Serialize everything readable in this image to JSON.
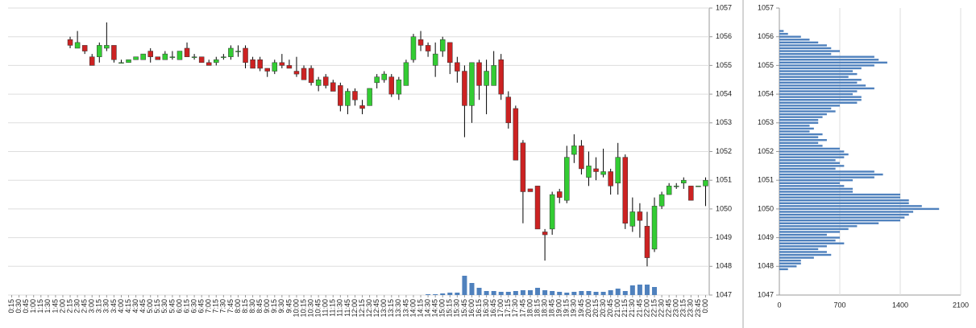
{
  "chart_data": [
    {
      "type": "candlestick",
      "categories": [
        "0:15",
        "0:30",
        "0:45",
        "1:00",
        "1:15",
        "1:30",
        "1:45",
        "2:00",
        "2:15",
        "2:30",
        "2:45",
        "3:00",
        "3:15",
        "3:30",
        "3:45",
        "4:00",
        "4:15",
        "4:30",
        "4:45",
        "5:00",
        "5:15",
        "5:30",
        "5:45",
        "6:00",
        "6:15",
        "6:30",
        "6:45",
        "7:00",
        "7:15",
        "7:30",
        "7:45",
        "8:00",
        "8:15",
        "8:30",
        "8:45",
        "9:00",
        "9:15",
        "9:30",
        "9:45",
        "10:00",
        "10:15",
        "10:30",
        "10:45",
        "11:00",
        "11:15",
        "11:30",
        "11:45",
        "12:00",
        "12:15",
        "12:30",
        "12:45",
        "13:00",
        "13:15",
        "13:30",
        "13:45",
        "14:00",
        "14:15",
        "14:30",
        "14:45",
        "15:00",
        "15:15",
        "15:30",
        "15:45",
        "16:00",
        "16:15",
        "16:30",
        "16:45",
        "17:00",
        "17:15",
        "17:30",
        "17:45",
        "18:00",
        "18:15",
        "18:30",
        "18:45",
        "19:00",
        "19:15",
        "19:30",
        "19:45",
        "20:00",
        "20:15",
        "20:30",
        "20:45",
        "21:00",
        "21:15",
        "21:30",
        "21:45",
        "22:00",
        "22:15",
        "22:30",
        "22:45",
        "23:00",
        "23:15",
        "23:30",
        "23:45",
        "0:00"
      ],
      "open": [
        null,
        null,
        null,
        null,
        null,
        null,
        null,
        null,
        1055.9,
        1055.6,
        1055.7,
        1055.3,
        1055.3,
        1055.6,
        1055.7,
        1055.1,
        1055.1,
        1055.2,
        1055.2,
        1055.5,
        1055.3,
        1055.2,
        1055.3,
        1055.2,
        1055.6,
        1055.3,
        1055.3,
        1055.1,
        1055.1,
        1055.3,
        1055.3,
        1055.5,
        1055.6,
        1055.2,
        1055.2,
        1054.9,
        1054.8,
        1055.1,
        1055.0,
        1054.8,
        1054.9,
        1054.9,
        1054.3,
        1054.6,
        1054.4,
        1054.3,
        1053.6,
        1054.1,
        1053.6,
        1053.6,
        1054.4,
        1054.5,
        1054.6,
        1054.0,
        1054.3,
        1055.2,
        1055.9,
        1055.7,
        1055.0,
        1055.5,
        1055.8,
        1055.1,
        1054.8,
        1053.6,
        1055.1,
        1054.3,
        1054.3,
        1055.2,
        1053.9,
        1053.5,
        1052.3,
        1050.7,
        1050.8,
        1049.2,
        1049.3,
        1050.6,
        1050.3,
        1051.9,
        1052.2,
        1051.1,
        1051.4,
        1051.2,
        1051.3,
        1050.9,
        1051.8,
        1049.4,
        1049.9,
        1049.4,
        1048.6,
        1050.1,
        1050.5,
        1050.8,
        1050.9,
        1050.8,
        1050.8,
        1050.8
      ],
      "high": [
        null,
        null,
        null,
        null,
        null,
        null,
        null,
        null,
        1056.0,
        1056.2,
        1055.7,
        1055.4,
        1055.8,
        1056.5,
        1055.7,
        1055.2,
        1055.2,
        1055.3,
        1055.4,
        1055.6,
        1055.3,
        1055.5,
        1055.5,
        1055.5,
        1055.8,
        1055.4,
        1055.3,
        1055.2,
        1055.3,
        1055.4,
        1055.7,
        1055.7,
        1055.7,
        1055.3,
        1055.3,
        1054.9,
        1055.2,
        1055.4,
        1055.2,
        1055.3,
        1055.0,
        1055.0,
        1054.6,
        1054.7,
        1054.5,
        1054.4,
        1054.2,
        1054.2,
        1053.8,
        1054.2,
        1054.7,
        1054.8,
        1054.7,
        1054.6,
        1055.2,
        1056.1,
        1056.2,
        1055.8,
        1055.8,
        1056.0,
        1055.8,
        1055.3,
        1055.0,
        1055.1,
        1055.2,
        1055.2,
        1055.5,
        1055.4,
        1054.1,
        1053.6,
        1052.4,
        1050.7,
        1050.8,
        1049.3,
        1050.6,
        1050.7,
        1052.2,
        1052.6,
        1052.4,
        1052.0,
        1051.8,
        1052.1,
        1051.4,
        1052.3,
        1051.9,
        1050.4,
        1050.2,
        1049.9,
        1050.4,
        1050.6,
        1050.9,
        1050.9,
        1051.1,
        1050.8,
        1050.8,
        1051.1
      ],
      "low": [
        null,
        null,
        null,
        null,
        null,
        null,
        null,
        null,
        1055.6,
        1055.6,
        1055.4,
        1055.0,
        1055.1,
        1055.5,
        1055.1,
        1055.1,
        1055.1,
        1055.2,
        1055.2,
        1055.1,
        1055.2,
        1055.2,
        1055.2,
        1055.2,
        1055.3,
        1055.2,
        1055.1,
        1055.0,
        1055.0,
        1055.2,
        1055.2,
        1055.3,
        1054.9,
        1054.9,
        1054.8,
        1054.6,
        1054.7,
        1054.9,
        1054.9,
        1054.6,
        1054.5,
        1054.3,
        1054.1,
        1054.2,
        1054.1,
        1053.4,
        1053.3,
        1053.6,
        1053.3,
        1053.6,
        1054.2,
        1054.4,
        1053.9,
        1053.8,
        1054.3,
        1055.1,
        1055.5,
        1055.3,
        1054.6,
        1055.3,
        1054.7,
        1054.4,
        1052.5,
        1053.0,
        1053.8,
        1053.3,
        1054.3,
        1053.8,
        1052.8,
        1051.7,
        1049.5,
        1050.6,
        1049.3,
        1048.2,
        1049.1,
        1050.2,
        1050.2,
        1051.6,
        1051.2,
        1050.8,
        1051.0,
        1051.1,
        1050.5,
        1050.5,
        1049.3,
        1049.2,
        1049.0,
        1048.0,
        1048.5,
        1050.0,
        1050.5,
        1050.7,
        1050.7,
        1050.3,
        1050.8,
        1050.1
      ],
      "close": [
        null,
        null,
        null,
        null,
        null,
        null,
        null,
        null,
        1055.7,
        1055.8,
        1055.5,
        1055.0,
        1055.7,
        1055.7,
        1055.2,
        1055.1,
        1055.2,
        1055.3,
        1055.4,
        1055.3,
        1055.2,
        1055.4,
        1055.3,
        1055.5,
        1055.3,
        1055.3,
        1055.1,
        1055.0,
        1055.2,
        1055.3,
        1055.6,
        1055.5,
        1055.1,
        1054.9,
        1054.9,
        1054.8,
        1055.1,
        1055.0,
        1054.9,
        1054.7,
        1054.5,
        1054.4,
        1054.5,
        1054.3,
        1054.1,
        1053.6,
        1054.1,
        1053.8,
        1053.5,
        1054.2,
        1054.6,
        1054.7,
        1054.0,
        1054.5,
        1055.1,
        1056.0,
        1055.7,
        1055.5,
        1055.4,
        1055.9,
        1055.1,
        1054.8,
        1053.6,
        1055.1,
        1054.3,
        1054.8,
        1055.0,
        1054.0,
        1053.0,
        1051.7,
        1050.6,
        1050.6,
        1049.3,
        1049.1,
        1050.5,
        1050.4,
        1051.8,
        1052.2,
        1051.4,
        1051.5,
        1051.3,
        1051.3,
        1050.8,
        1051.8,
        1049.5,
        1049.9,
        1049.6,
        1048.3,
        1050.1,
        1050.5,
        1050.8,
        1050.8,
        1051.0,
        1050.3,
        1050.8,
        1051.0
      ],
      "volume": [
        null,
        null,
        null,
        null,
        null,
        null,
        null,
        null,
        0,
        0,
        0,
        0,
        0,
        0,
        0,
        0,
        0,
        0,
        0,
        0,
        0,
        0,
        0,
        0,
        0,
        0,
        0,
        0,
        0,
        0,
        0,
        0,
        0,
        0,
        0,
        0,
        0,
        0,
        0,
        0,
        0,
        0,
        0,
        0,
        0,
        0,
        0,
        0,
        0,
        0,
        0,
        0,
        0,
        0,
        0,
        0,
        0,
        1,
        1,
        2,
        3,
        3,
        24,
        15,
        9,
        5,
        5,
        4,
        4,
        5,
        6,
        6,
        9,
        6,
        5,
        4,
        3,
        4,
        5,
        5,
        4,
        4,
        6,
        8,
        5,
        12,
        13,
        13,
        10,
        0,
        0,
        0,
        0,
        0,
        0,
        0
      ],
      "volume_lim": [
        0,
        357
      ],
      "up_color": "#33cc33",
      "down_color": "#cc2222",
      "volume_color": "#4f81bd",
      "ylim": [
        1047,
        1057
      ],
      "yticks": [
        1047,
        1048,
        1049,
        1050,
        1051,
        1052,
        1053,
        1054,
        1055,
        1056,
        1057
      ],
      "grid": true
    },
    {
      "type": "profile",
      "prices": [
        1056.2,
        1056.1,
        1056.0,
        1055.9,
        1055.8,
        1055.7,
        1055.6,
        1055.5,
        1055.4,
        1055.3,
        1055.2,
        1055.1,
        1055.0,
        1054.9,
        1054.8,
        1054.7,
        1054.6,
        1054.5,
        1054.4,
        1054.3,
        1054.2,
        1054.1,
        1054.0,
        1053.9,
        1053.8,
        1053.7,
        1053.6,
        1053.5,
        1053.4,
        1053.3,
        1053.2,
        1053.1,
        1053.0,
        1052.9,
        1052.8,
        1052.7,
        1052.6,
        1052.5,
        1052.4,
        1052.3,
        1052.2,
        1052.1,
        1052.0,
        1051.9,
        1051.8,
        1051.7,
        1051.6,
        1051.5,
        1051.4,
        1051.3,
        1051.2,
        1051.1,
        1051.0,
        1050.9,
        1050.8,
        1050.7,
        1050.6,
        1050.5,
        1050.4,
        1050.3,
        1050.2,
        1050.1,
        1050.0,
        1049.9,
        1049.8,
        1049.7,
        1049.6,
        1049.5,
        1049.4,
        1049.3,
        1049.2,
        1049.1,
        1049.0,
        1048.9,
        1048.8,
        1048.7,
        1048.6,
        1048.5,
        1048.4,
        1048.3,
        1048.2,
        1048.1,
        1048.0,
        1047.9
      ],
      "values": [
        50,
        100,
        250,
        350,
        450,
        550,
        600,
        700,
        600,
        1100,
        1150,
        1250,
        1100,
        950,
        850,
        900,
        800,
        950,
        900,
        1000,
        1100,
        900,
        850,
        950,
        950,
        900,
        700,
        600,
        650,
        550,
        500,
        450,
        450,
        350,
        400,
        350,
        500,
        450,
        550,
        450,
        500,
        700,
        750,
        800,
        750,
        650,
        700,
        750,
        650,
        1100,
        1200,
        1100,
        850,
        700,
        750,
        850,
        850,
        1400,
        1400,
        1500,
        1500,
        1650,
        1850,
        1550,
        1500,
        1450,
        1400,
        1150,
        900,
        800,
        700,
        550,
        700,
        650,
        750,
        550,
        450,
        550,
        600,
        400,
        250,
        250,
        200,
        100
      ],
      "color": "#4f81bd",
      "xlim": [
        0,
        2100
      ],
      "xticks": [
        0,
        700,
        1400,
        2100
      ],
      "ylim": [
        1047,
        1057
      ],
      "yticks": [
        1047,
        1048,
        1049,
        1050,
        1051,
        1052,
        1053,
        1054,
        1055,
        1056,
        1057
      ],
      "grid": true
    }
  ]
}
